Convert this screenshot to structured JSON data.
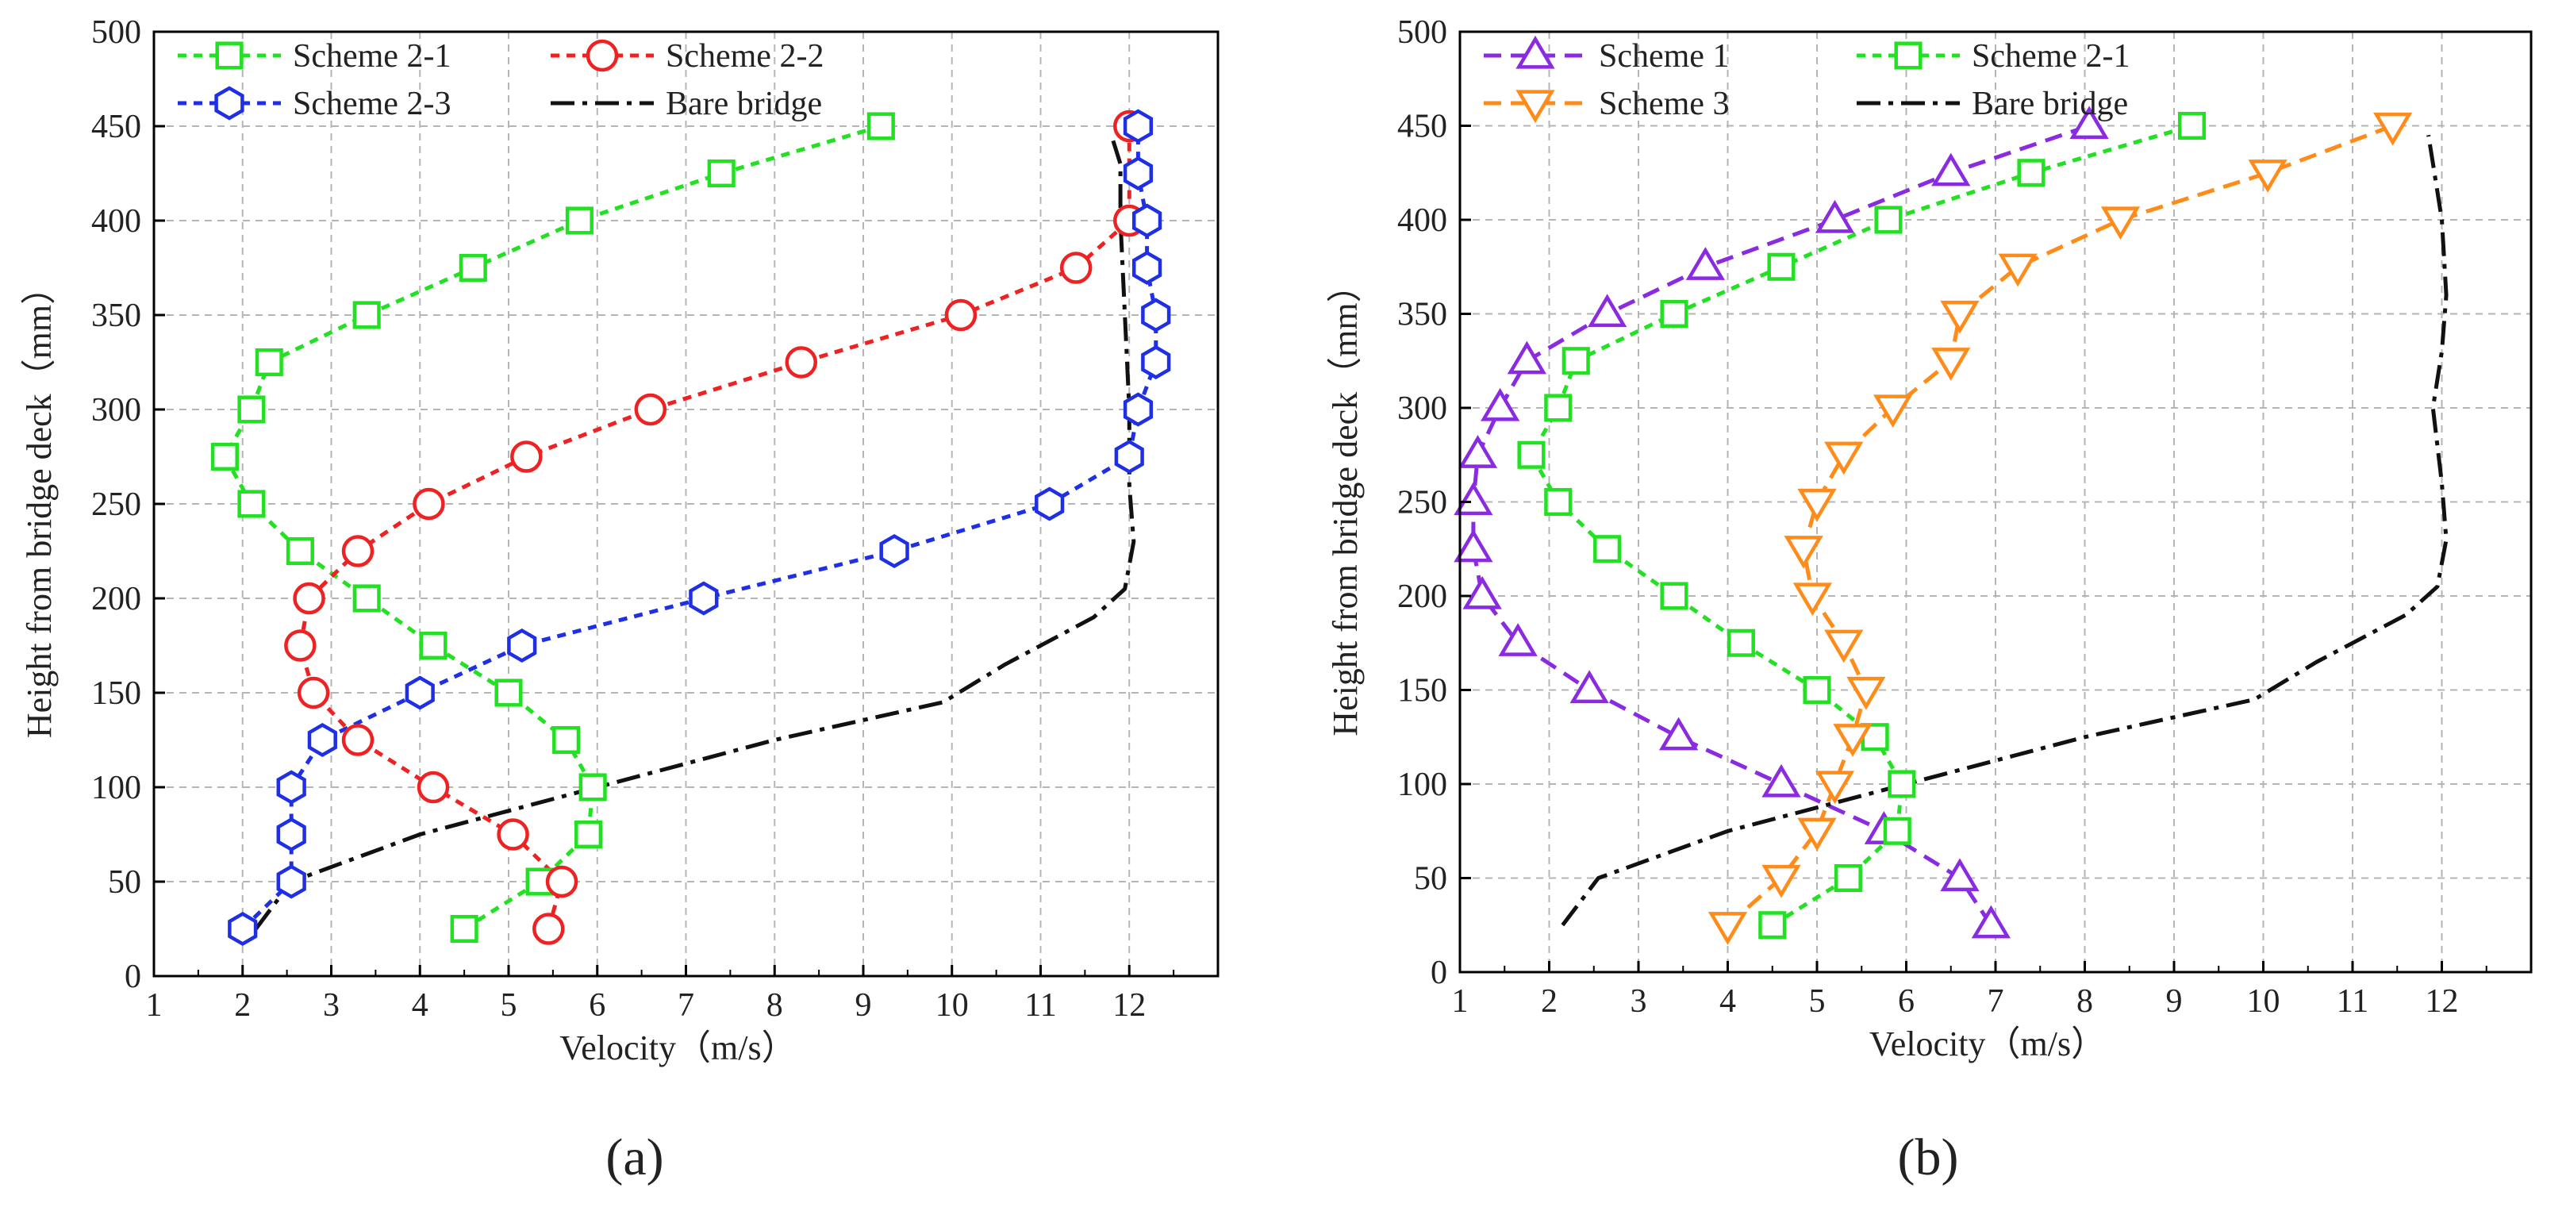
{
  "chart_data": [
    {
      "type": "line",
      "panel_label": "(a)",
      "title": "",
      "xlabel": "Velocity（m/s）",
      "ylabel": "Height from bridge deck（mm）",
      "xlim": [
        1,
        13
      ],
      "ylim": [
        0,
        500
      ],
      "xticks": [
        1,
        2,
        3,
        4,
        5,
        6,
        7,
        8,
        9,
        10,
        11,
        12
      ],
      "yticks": [
        0,
        50,
        100,
        150,
        200,
        250,
        300,
        350,
        400,
        450,
        500
      ],
      "grid": true,
      "legend": "top",
      "legend_columns": 2,
      "series": [
        {
          "name": "Scheme 2-1",
          "color": "#22e022",
          "marker": "square",
          "dash": "dot",
          "x": [
            4.5,
            5.35,
            5.9,
            5.95,
            5.65,
            5.0,
            4.15,
            3.4,
            2.65,
            2.1,
            1.8,
            2.1,
            2.3,
            3.4,
            4.6,
            5.8,
            7.4,
            9.2
          ],
          "y": [
            25,
            50,
            75,
            100,
            125,
            150,
            175,
            200,
            225,
            250,
            275,
            300,
            325,
            350,
            375,
            400,
            425,
            450
          ]
        },
        {
          "name": "Scheme 2-2",
          "color": "#ee2222",
          "marker": "circle",
          "dash": "dot",
          "x": [
            5.45,
            5.6,
            5.05,
            4.15,
            3.3,
            2.8,
            2.65,
            2.75,
            3.3,
            4.1,
            5.2,
            6.6,
            8.3,
            10.1,
            11.4,
            12.0,
            12.0
          ],
          "y": [
            25,
            50,
            75,
            100,
            125,
            150,
            175,
            200,
            225,
            250,
            275,
            300,
            325,
            350,
            375,
            400,
            450
          ]
        },
        {
          "name": "Scheme 2-3",
          "color": "#1e2fe6",
          "marker": "hexagon",
          "dash": "dot",
          "x": [
            2.0,
            2.55,
            2.55,
            2.55,
            2.9,
            4.0,
            5.15,
            7.2,
            9.35,
            11.1,
            12.0,
            12.1,
            12.3,
            12.3,
            12.2,
            12.2,
            12.1,
            12.1
          ],
          "y": [
            25,
            50,
            75,
            100,
            125,
            150,
            175,
            200,
            225,
            250,
            275,
            300,
            325,
            350,
            375,
            400,
            425,
            450
          ]
        },
        {
          "name": "Bare bridge",
          "color": "#111111",
          "marker": "none",
          "dash": "dashdot",
          "x": [
            2.15,
            2.55,
            4.0,
            6.0,
            8.0,
            9.9,
            10.6,
            11.6,
            11.95,
            12.05,
            12.0,
            12.0,
            11.95,
            11.9,
            11.9,
            11.8
          ],
          "y": [
            25,
            50,
            75,
            100,
            125,
            145,
            165,
            190,
            205,
            230,
            260,
            300,
            350,
            400,
            430,
            445
          ]
        }
      ]
    },
    {
      "type": "line",
      "panel_label": "(b)",
      "title": "",
      "xlabel": "Velocity（m/s）",
      "ylabel": "Height from bridge deck（mm）",
      "xlim": [
        1,
        13
      ],
      "ylim": [
        0,
        500
      ],
      "xticks": [
        1,
        2,
        3,
        4,
        5,
        6,
        7,
        8,
        9,
        10,
        11,
        12
      ],
      "yticks": [
        0,
        50,
        100,
        150,
        200,
        250,
        300,
        350,
        400,
        450,
        500
      ],
      "grid": true,
      "legend": "top",
      "legend_columns": 2,
      "series": [
        {
          "name": "Scheme 1",
          "color": "#8a2be2",
          "marker": "triangle-up",
          "dash": "dash",
          "x": [
            6.95,
            6.6,
            5.75,
            4.6,
            3.45,
            2.45,
            1.65,
            1.25,
            1.15,
            1.15,
            1.2,
            1.45,
            1.75,
            2.65,
            3.75,
            5.2,
            6.5,
            8.05
          ],
          "y": [
            25,
            50,
            75,
            100,
            125,
            150,
            175,
            200,
            225,
            250,
            275,
            300,
            325,
            350,
            375,
            400,
            425,
            450
          ]
        },
        {
          "name": "Scheme 2-1",
          "color": "#22e022",
          "marker": "square",
          "dash": "dot",
          "x": [
            4.5,
            5.35,
            5.9,
            5.95,
            5.65,
            5.0,
            4.15,
            3.4,
            2.65,
            2.1,
            1.8,
            2.1,
            2.3,
            3.4,
            4.6,
            5.8,
            7.4,
            9.2
          ],
          "y": [
            25,
            50,
            75,
            100,
            125,
            150,
            175,
            200,
            225,
            250,
            275,
            300,
            325,
            350,
            375,
            400,
            425,
            450
          ]
        },
        {
          "name": "Scheme 3",
          "color": "#ff8c1a",
          "marker": "triangle-down",
          "dash": "dash",
          "x": [
            4.0,
            4.6,
            5.0,
            5.2,
            5.4,
            5.55,
            5.3,
            4.95,
            4.85,
            5.0,
            5.3,
            5.85,
            6.5,
            6.6,
            7.25,
            8.4,
            10.05,
            11.45
          ],
          "y": [
            25,
            50,
            75,
            100,
            125,
            150,
            175,
            200,
            225,
            250,
            275,
            300,
            325,
            350,
            375,
            400,
            425,
            450
          ]
        },
        {
          "name": "Bare bridge",
          "color": "#111111",
          "marker": "none",
          "dash": "dashdot",
          "x": [
            2.15,
            2.55,
            4.0,
            6.0,
            8.0,
            9.9,
            10.6,
            11.6,
            11.95,
            12.05,
            12.0,
            11.9,
            12.0,
            12.05,
            12.0,
            11.9,
            11.85
          ],
          "y": [
            25,
            50,
            75,
            100,
            125,
            145,
            165,
            190,
            205,
            230,
            260,
            300,
            330,
            360,
            400,
            430,
            445
          ]
        }
      ]
    }
  ]
}
